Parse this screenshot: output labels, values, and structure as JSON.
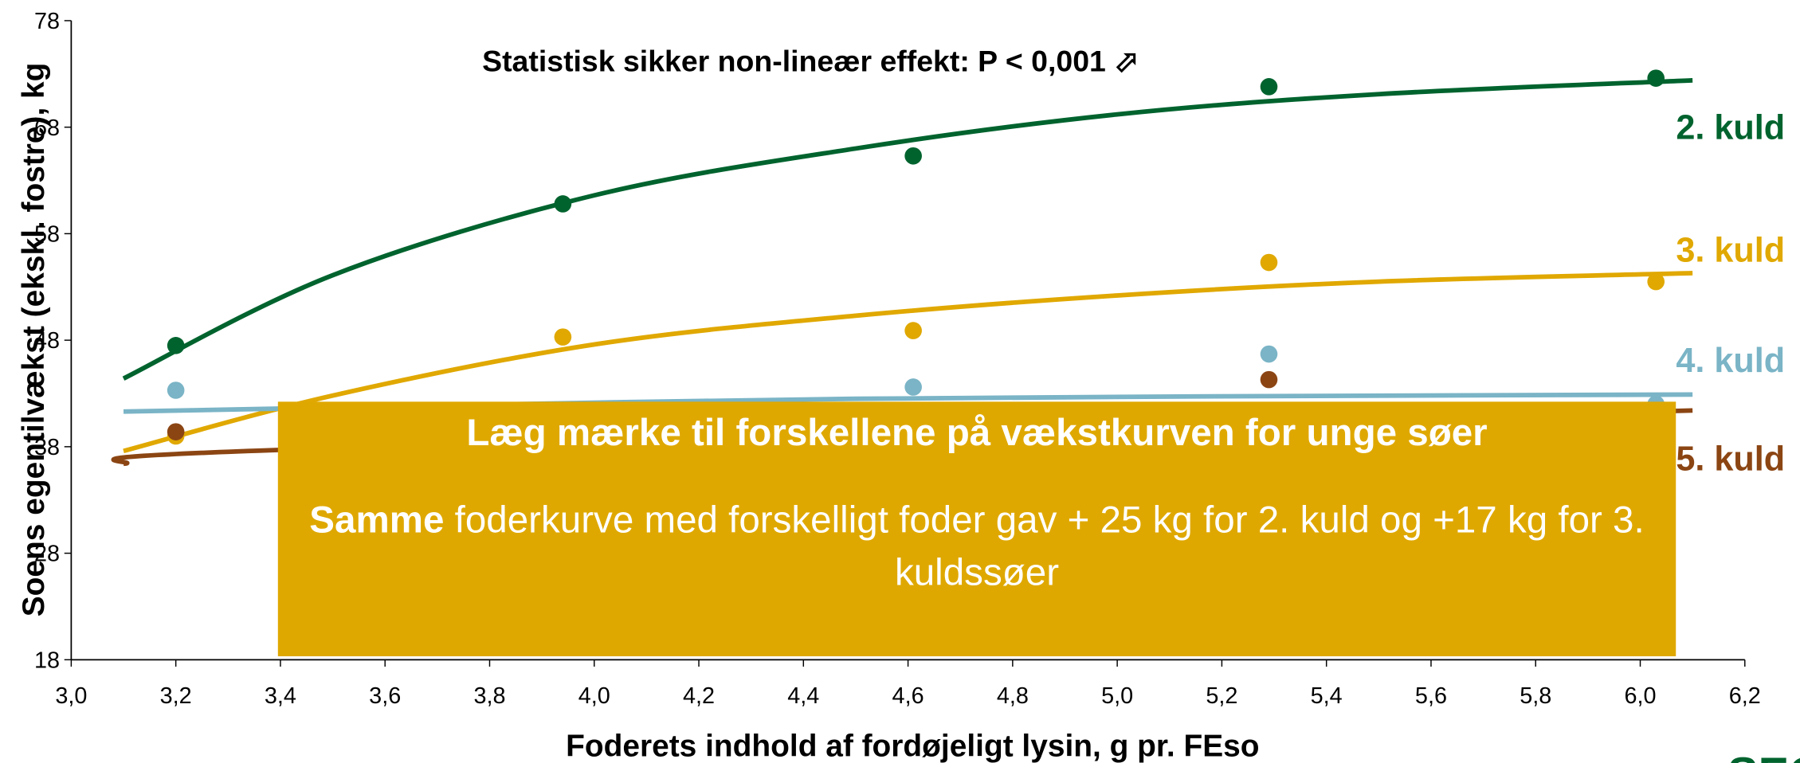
{
  "chart_data": {
    "type": "scatter",
    "annotation": "Statistisk sikker non-lineær effekt: P < 0,001 ⬀",
    "x_label": "Foderets indhold af fordøjeligt lysin, g pr. FEso",
    "y_label": "Soens egentilvækst (ekskl. fostre), kg",
    "x": [
      3.2,
      3.94,
      4.61,
      5.29,
      6.03
    ],
    "series": [
      {
        "name": "2. kuld",
        "color": "#00632e",
        "values": [
          47.5,
          60.8,
          65.3,
          71.8,
          72.6
        ],
        "fit": {
          "x": [
            3.1,
            3.5,
            4.0,
            4.5,
            5.0,
            5.5,
            6.1
          ],
          "values": [
            44.4,
            54.1,
            61.6,
            66,
            69.2,
            71.1,
            72.4
          ]
        }
      },
      {
        "name": "3. kuld",
        "color": "#e0a800",
        "values": [
          39,
          48.3,
          48.9,
          55.3,
          53.5
        ],
        "fit": {
          "x": [
            3.1,
            3.5,
            4.0,
            4.5,
            5.0,
            5.5,
            6.1
          ],
          "values": [
            37.6,
            42.8,
            47.6,
            50.3,
            52.2,
            53.5,
            54.3
          ]
        }
      },
      {
        "name": "4. kuld",
        "color": "#7ab4c6",
        "values": [
          43.3,
          null,
          43.6,
          46.7,
          42
        ],
        "fit": {
          "x": [
            3.1,
            4.5,
            6.1
          ],
          "values": [
            41.3,
            42.5,
            42.9
          ]
        }
      },
      {
        "name": "5. kuld",
        "color": "#8b4513",
        "values": [
          39.4,
          null,
          null,
          44.3,
          null
        ],
        "fit": {
          "x": [
            3.1,
            3.4,
            6.1
          ],
          "values": [
            36.4,
            37.7,
            41.4
          ]
        }
      }
    ],
    "xlim": [
      3.0,
      6.2
    ],
    "xticks": [
      {
        "value": 3.0,
        "label": "3,0"
      },
      {
        "value": 3.2,
        "label": "3,2"
      },
      {
        "value": 3.4,
        "label": "3,4"
      },
      {
        "value": 3.6,
        "label": "3,6"
      },
      {
        "value": 3.8,
        "label": "3,8"
      },
      {
        "value": 4.0,
        "label": "4,0"
      },
      {
        "value": 4.2,
        "label": "4,2"
      },
      {
        "value": 4.4,
        "label": "4,4"
      },
      {
        "value": 4.6,
        "label": "4,6"
      },
      {
        "value": 4.8,
        "label": "4,8"
      },
      {
        "value": 5.0,
        "label": "5,0"
      },
      {
        "value": 5.2,
        "label": "5,2"
      },
      {
        "value": 5.4,
        "label": "5,4"
      },
      {
        "value": 5.6,
        "label": "5,6"
      },
      {
        "value": 5.8,
        "label": "5,8"
      },
      {
        "value": 6.0,
        "label": "6,0"
      },
      {
        "value": 6.2,
        "label": "6,2"
      }
    ],
    "ylim": [
      18,
      78
    ],
    "yticks": [
      18,
      28,
      38,
      48,
      58,
      68,
      78
    ],
    "grid": false,
    "callout": {
      "heading": "Læg mærke til forskellene på vækstkurven for unge søer",
      "emphasis": "Samme",
      "text": " foderkurve med forskelligt foder gav + 25 kg for 2. kuld og +17 kg for 3. kuldssøer"
    },
    "logo": "SEG"
  }
}
